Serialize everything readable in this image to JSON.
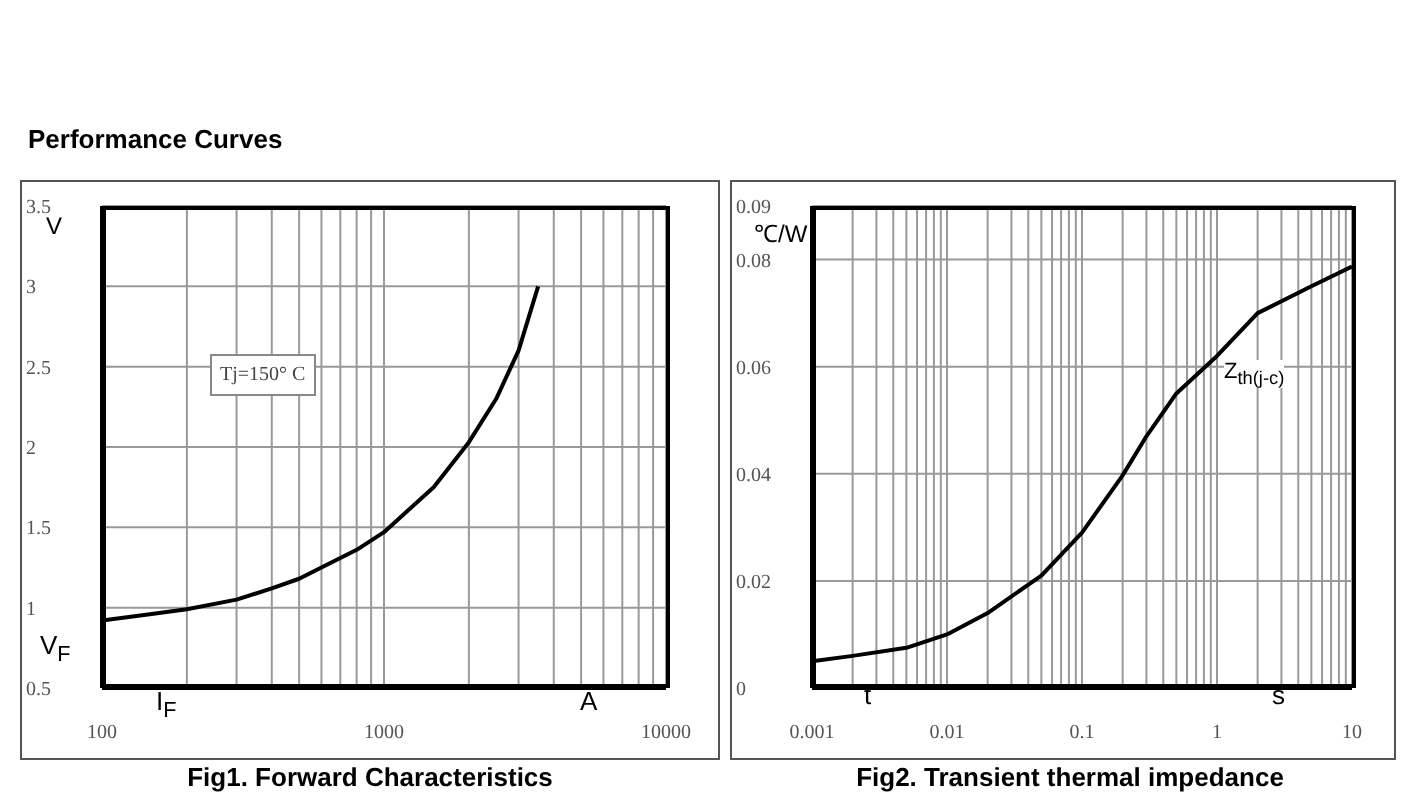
{
  "chart_data": [
    {
      "type": "line",
      "title": "Fig1. Forward Characteristics",
      "xlabel": "A",
      "ylabel": "V",
      "annotations": [
        "Performance Curves",
        "Tj=150° C",
        "V$_{F}$",
        "I$_{F}$"
      ],
      "log": "x",
      "grid": true,
      "legend": false,
      "marker": "none",
      "line_style": "solid",
      "xlim": [
        100,
        10000
      ],
      "xticks": [
        100,
        {
          "value": 200,
          "label": null
        },
        {
          "value": 300,
          "label": null
        },
        {
          "value": 400,
          "label": null
        },
        {
          "value": 500,
          "label": null
        },
        {
          "value": 600,
          "label": null
        },
        {
          "value": 700,
          "label": null
        },
        {
          "value": 800,
          "label": null
        },
        {
          "value": 900,
          "label": null
        },
        1000,
        {
          "value": 2000,
          "label": null
        },
        {
          "value": 3000,
          "label": null
        },
        {
          "value": 4000,
          "label": null
        },
        {
          "value": 5000,
          "label": null
        },
        {
          "value": 6000,
          "label": null
        },
        {
          "value": 7000,
          "label": null
        },
        {
          "value": 8000,
          "label": null
        },
        {
          "value": 9000,
          "label": null
        },
        10000
      ],
      "ylim": [
        0.5,
        3.5
      ],
      "yticks": [
        0.5,
        1,
        1.5,
        2,
        2.5,
        3,
        3.5
      ],
      "series": [
        {
          "color": "#000000",
          "x": [
            100,
            150,
            200,
            300,
            400,
            500,
            600,
            800,
            1000,
            1500,
            2000,
            2500,
            3000,
            3520
          ],
          "values": [
            0.92,
            0.96,
            0.99,
            1.05,
            1.12,
            1.18,
            1.25,
            1.36,
            1.47,
            1.75,
            2.03,
            2.3,
            2.6,
            3.0
          ]
        }
      ]
    },
    {
      "type": "line",
      "title": "Fig2. Transient thermal impedance",
      "xlabel": "s",
      "ylabel": "℃/W",
      "annotations": [
        "t"
      ],
      "log": "x",
      "grid": true,
      "legend": false,
      "marker": "none",
      "line_style": "solid",
      "xlim": [
        0.001,
        10
      ],
      "xticks": [
        0.001,
        {
          "value": 0.002,
          "label": null
        },
        {
          "value": 0.003,
          "label": null
        },
        {
          "value": 0.004,
          "label": null
        },
        {
          "value": 0.005,
          "label": null
        },
        {
          "value": 0.006,
          "label": null
        },
        {
          "value": 0.007,
          "label": null
        },
        {
          "value": 0.008,
          "label": null
        },
        {
          "value": 0.009,
          "label": null
        },
        0.01,
        {
          "value": 0.02,
          "label": null
        },
        {
          "value": 0.03,
          "label": null
        },
        {
          "value": 0.04,
          "label": null
        },
        {
          "value": 0.05,
          "label": null
        },
        {
          "value": 0.06,
          "label": null
        },
        {
          "value": 0.07,
          "label": null
        },
        {
          "value": 0.08,
          "label": null
        },
        {
          "value": 0.09,
          "label": null
        },
        0.1,
        {
          "value": 0.2,
          "label": null
        },
        {
          "value": 0.3,
          "label": null
        },
        {
          "value": 0.4,
          "label": null
        },
        {
          "value": 0.5,
          "label": null
        },
        {
          "value": 0.6,
          "label": null
        },
        {
          "value": 0.7,
          "label": null
        },
        {
          "value": 0.8,
          "label": null
        },
        {
          "value": 0.9,
          "label": null
        },
        1,
        {
          "value": 2,
          "label": null
        },
        {
          "value": 3,
          "label": null
        },
        {
          "value": 4,
          "label": null
        },
        {
          "value": 5,
          "label": null
        },
        {
          "value": 6,
          "label": null
        },
        {
          "value": 7,
          "label": null
        },
        {
          "value": 8,
          "label": null
        },
        {
          "value": 9,
          "label": null
        },
        10
      ],
      "ylim": [
        0,
        0.09
      ],
      "yticks": [
        0,
        0.02,
        0.04,
        0.06,
        0.08,
        0.09
      ],
      "series": [
        {
          "name": "Z$_{th(j-c)}$",
          "color": "#000000",
          "x": [
            0.001,
            0.002,
            0.005,
            0.01,
            0.02,
            0.05,
            0.1,
            0.2,
            0.3,
            0.5,
            1,
            2,
            5,
            10
          ],
          "values": [
            0.005,
            0.006,
            0.0075,
            0.01,
            0.014,
            0.021,
            0.029,
            0.0397,
            0.047,
            0.055,
            0.062,
            0.07,
            0.075,
            0.0787
          ]
        }
      ]
    }
  ]
}
